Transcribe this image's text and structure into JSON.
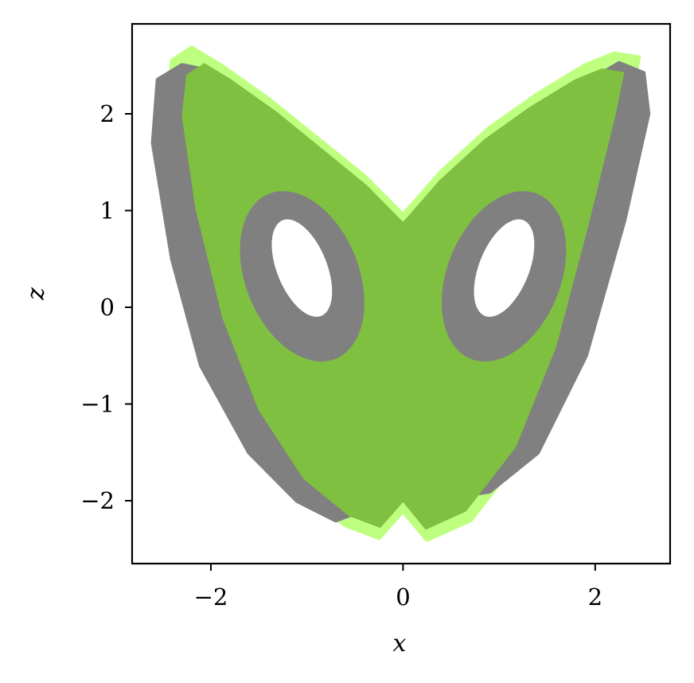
{
  "chart_data": {
    "type": "line",
    "title": "",
    "xlabel": "x",
    "ylabel": "z",
    "xlim": [
      -2.82,
      2.78
    ],
    "ylim": [
      -2.65,
      2.93
    ],
    "xticks": [
      -2,
      0,
      2
    ],
    "yticks": [
      -2,
      -1,
      0,
      1,
      2
    ],
    "xtick_labels": [
      "−2",
      "0",
      "2"
    ],
    "ytick_labels": [
      "−2",
      "−1",
      "0",
      "1",
      "2"
    ],
    "grid": false,
    "legend": "none",
    "colors": {
      "series_a": "#808080",
      "series_b": "#bfff80",
      "overlap": "#80c040"
    },
    "series": [
      {
        "color": "#808080",
        "outline": [
          [
            -2.55,
            2.35
          ],
          [
            -2.3,
            2.5
          ],
          [
            -2.05,
            2.45
          ],
          [
            -1.6,
            2.1
          ],
          [
            -1.1,
            1.7
          ],
          [
            -0.5,
            1.2
          ],
          [
            0,
            0.85
          ],
          [
            0.5,
            1.25
          ],
          [
            1.1,
            1.75
          ],
          [
            1.7,
            2.2
          ],
          [
            2.25,
            2.52
          ],
          [
            2.5,
            2.42
          ],
          [
            2.55,
            2.0
          ],
          [
            2.3,
            0.9
          ],
          [
            1.9,
            -0.5
          ],
          [
            1.4,
            -1.5
          ],
          [
            0.9,
            -1.9
          ],
          [
            0.3,
            -2.0
          ],
          [
            0,
            -1.75
          ],
          [
            -0.3,
            -2.05
          ],
          [
            -0.7,
            -2.2
          ],
          [
            -1.1,
            -2.0
          ],
          [
            -1.6,
            -1.5
          ],
          [
            -2.1,
            -0.6
          ],
          [
            -2.4,
            0.5
          ],
          [
            -2.6,
            1.7
          ]
        ],
        "holes": [
          {
            "cx": -1.05,
            "cz": 0.32,
            "rx": 0.5,
            "rz": 0.92,
            "rot": -22
          },
          {
            "cx": 1.05,
            "cz": 0.32,
            "rx": 0.5,
            "rz": 0.92,
            "rot": 22
          }
        ]
      },
      {
        "color": "#bfff80",
        "outline": [
          [
            -2.4,
            2.55
          ],
          [
            -2.2,
            2.68
          ],
          [
            -1.9,
            2.5
          ],
          [
            -1.4,
            2.15
          ],
          [
            -0.9,
            1.75
          ],
          [
            -0.4,
            1.35
          ],
          [
            0,
            0.95
          ],
          [
            0.4,
            1.4
          ],
          [
            0.9,
            1.85
          ],
          [
            1.4,
            2.2
          ],
          [
            1.9,
            2.5
          ],
          [
            2.2,
            2.62
          ],
          [
            2.45,
            2.58
          ],
          [
            2.35,
            2.1
          ],
          [
            2.05,
            0.9
          ],
          [
            1.7,
            -0.4
          ],
          [
            1.25,
            -1.5
          ],
          [
            0.7,
            -2.2
          ],
          [
            0.25,
            -2.4
          ],
          [
            0,
            -2.1
          ],
          [
            -0.25,
            -2.38
          ],
          [
            -0.6,
            -2.25
          ],
          [
            -1.1,
            -1.85
          ],
          [
            -1.6,
            -1.1
          ],
          [
            -2.0,
            -0.1
          ],
          [
            -2.3,
            1.1
          ],
          [
            -2.45,
            2.1
          ]
        ],
        "holes": [
          {
            "cx": -1.05,
            "cz": 0.32,
            "rx": 0.58,
            "rz": 0.98,
            "rot": -22
          },
          {
            "cx": 1.05,
            "cz": 0.32,
            "rx": 0.58,
            "rz": 0.98,
            "rot": 22
          }
        ]
      }
    ]
  }
}
